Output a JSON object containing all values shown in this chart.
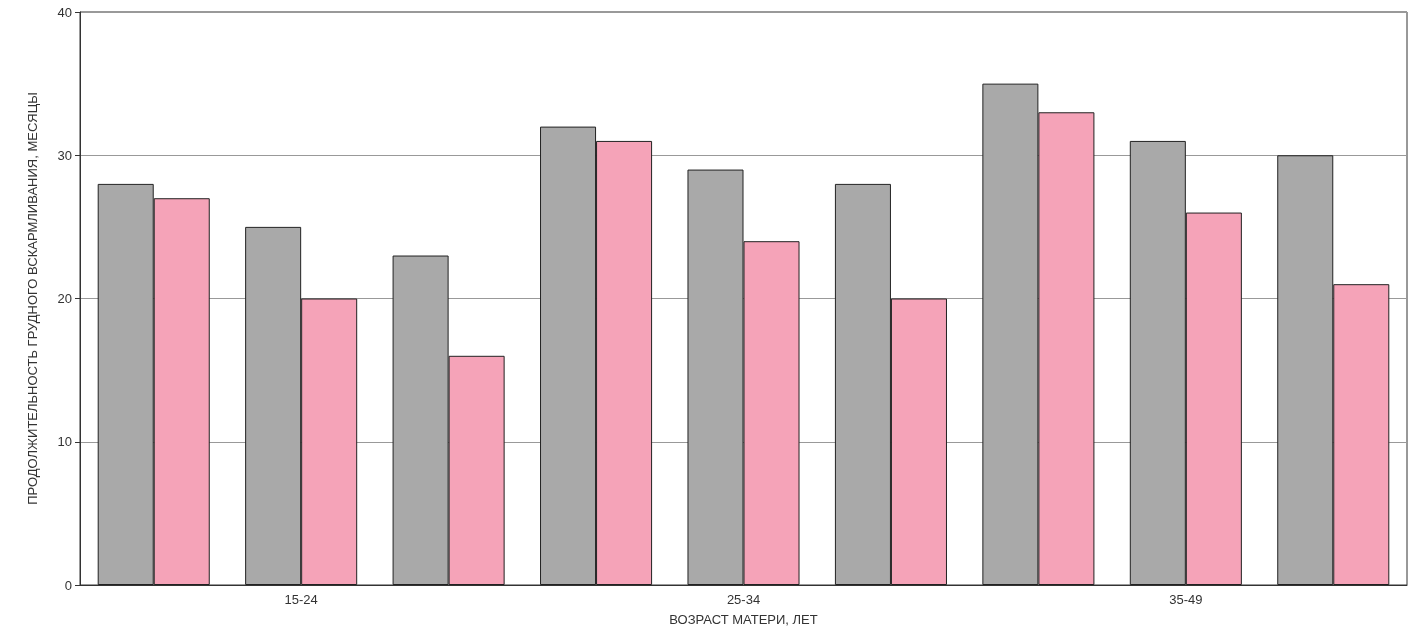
{
  "chart_data": {
    "type": "bar",
    "xlabel": "ВОЗРАСТ МАТЕРИ, ЛЕТ",
    "ylabel": "ПРОДОЛЖИТЕЛЬНОСТЬ ГРУДНОГО ВСКАРМЛИВАНИЯ, МЕСЯЦЫ",
    "categories": [
      null,
      "15-24",
      null,
      null,
      "25-34",
      null,
      null,
      "35-49",
      null
    ],
    "series": [
      {
        "color": "#a9a9a9",
        "values": [
          28,
          25,
          23,
          32,
          29,
          28,
          35,
          31,
          30
        ]
      },
      {
        "color": "#f5a3b8",
        "values": [
          27,
          20,
          16,
          31,
          24,
          20,
          33,
          26,
          21
        ]
      }
    ],
    "ylim": [
      0,
      40
    ],
    "yticks": [
      0,
      10,
      20,
      30,
      40
    ],
    "grid": "y"
  }
}
